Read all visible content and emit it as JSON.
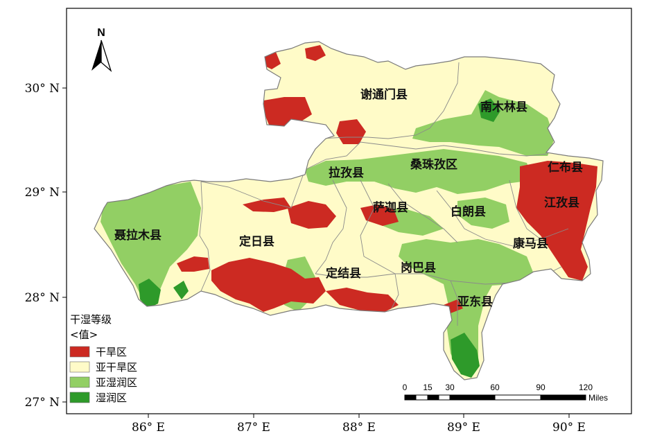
{
  "colors": {
    "dry": "#cc2a22",
    "semi_dry": "#fffbc8",
    "semi_humid": "#92cf64",
    "humid": "#2e9a2a",
    "boundary": "#8a8a8a"
  },
  "north_arrow": {
    "label": "N"
  },
  "latitude_labels": [
    "30° N",
    "29° N",
    "28° N",
    "27° N"
  ],
  "longitude_labels": [
    "86° E",
    "87° E",
    "88° E",
    "89° E",
    "90° E"
  ],
  "counties": [
    {
      "id": "xietongmen",
      "name": "谢通门县"
    },
    {
      "id": "nanmulin",
      "name": "南木林县"
    },
    {
      "id": "renbu",
      "name": "仁布县"
    },
    {
      "id": "sangzhuzi",
      "name": "桑珠孜区"
    },
    {
      "id": "lazi",
      "name": "拉孜县"
    },
    {
      "id": "jiangzi",
      "name": "江孜县"
    },
    {
      "id": "saga",
      "name": "萨迦县"
    },
    {
      "id": "bailang",
      "name": "白朗县"
    },
    {
      "id": "nielamu",
      "name": "聂拉木县"
    },
    {
      "id": "dingri",
      "name": "定日县"
    },
    {
      "id": "kangma",
      "name": "康马县"
    },
    {
      "id": "dingjie",
      "name": "定结县"
    },
    {
      "id": "gangba",
      "name": "岗巴县"
    },
    {
      "id": "yadong",
      "name": "亚东县"
    }
  ],
  "legend": {
    "title": "干湿等级",
    "subtitle": "<值>",
    "items": [
      {
        "label": "干旱区",
        "color": "#cc2a22"
      },
      {
        "label": "亚干旱区",
        "color": "#fffbc8"
      },
      {
        "label": "亚湿润区",
        "color": "#92cf64"
      },
      {
        "label": "湿润区",
        "color": "#2e9a2a"
      }
    ]
  },
  "scale_bar": {
    "ticks": [
      "0",
      "15",
      "30",
      "60",
      "90",
      "120"
    ],
    "unit": "Miles"
  }
}
